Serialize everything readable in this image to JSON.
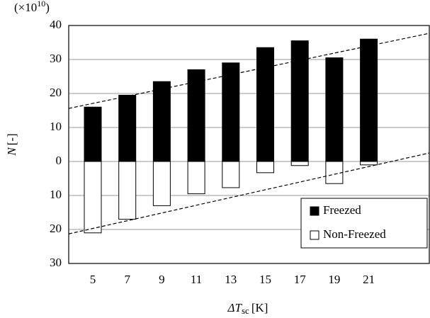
{
  "chart_data": {
    "type": "bar",
    "multiplier": {
      "prefix": "(×10",
      "exponent": "10",
      "suffix": ")"
    },
    "ylabel": {
      "symbol": "N",
      "unit": "[-]"
    },
    "xlabel": {
      "symbol": "ΔT",
      "subscript": "sc",
      "unit": "[K]"
    },
    "categories": [
      "5",
      "7",
      "9",
      "11",
      "13",
      "15",
      "17",
      "19",
      "21"
    ],
    "series": [
      {
        "name": "Freezed",
        "color": "#000000",
        "values": [
          16,
          19.5,
          23.5,
          27,
          29,
          33.5,
          35.5,
          30.5,
          36
        ]
      },
      {
        "name": "Non-Freezed",
        "color": "#ffffff",
        "values": [
          -21,
          -17,
          -13,
          -9.5,
          -7.7,
          -3.3,
          -1.2,
          -6.5,
          -1
        ]
      }
    ],
    "trend_lines": [
      {
        "values": [
          15.6,
          37.7
        ]
      },
      {
        "values": [
          -21.3,
          2.5
        ]
      }
    ],
    "ylim": [
      -30,
      40
    ],
    "yticks": [
      {
        "value": -30,
        "label": "30"
      },
      {
        "value": -20,
        "label": "20"
      },
      {
        "value": -10,
        "label": "10"
      },
      0,
      10,
      20,
      30,
      40
    ],
    "grid": true,
    "legend": "lower right"
  }
}
